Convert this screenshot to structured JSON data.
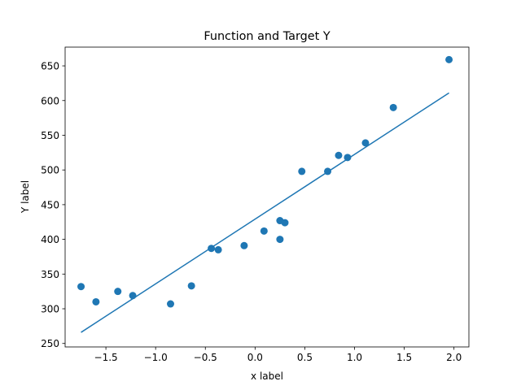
{
  "chart_data": {
    "type": "scatter",
    "title": "Function and Target Y",
    "xlabel": "x label",
    "ylabel": "Y label",
    "xlim": [
      -1.91,
      2.15
    ],
    "ylim": [
      245,
      677
    ],
    "xticks": [
      -1.5,
      -1.0,
      -0.5,
      0.0,
      0.5,
      1.0,
      1.5,
      2.0
    ],
    "xtick_labels": [
      "−1.5",
      "−1.0",
      "−0.5",
      "0.0",
      "0.5",
      "1.0",
      "1.5",
      "2.0"
    ],
    "yticks": [
      250,
      300,
      350,
      400,
      450,
      500,
      550,
      600,
      650
    ],
    "ytick_labels": [
      "250",
      "300",
      "350",
      "400",
      "450",
      "500",
      "550",
      "600",
      "650"
    ],
    "grid": false,
    "color": "#1f77b4",
    "series": [
      {
        "kind": "scatter",
        "points": [
          [
            -1.75,
            332
          ],
          [
            -1.6,
            310
          ],
          [
            -1.38,
            325
          ],
          [
            -1.23,
            319
          ],
          [
            -0.85,
            307
          ],
          [
            -0.64,
            333
          ],
          [
            -0.44,
            387
          ],
          [
            -0.37,
            385
          ],
          [
            -0.11,
            391
          ],
          [
            0.09,
            412
          ],
          [
            0.25,
            427
          ],
          [
            0.25,
            400
          ],
          [
            0.3,
            424
          ],
          [
            0.47,
            498
          ],
          [
            0.73,
            498
          ],
          [
            0.84,
            521
          ],
          [
            0.93,
            518
          ],
          [
            1.11,
            539
          ],
          [
            1.39,
            590
          ],
          [
            1.95,
            659
          ]
        ]
      },
      {
        "kind": "line",
        "points": [
          [
            -1.75,
            266
          ],
          [
            1.95,
            611
          ]
        ]
      }
    ]
  }
}
